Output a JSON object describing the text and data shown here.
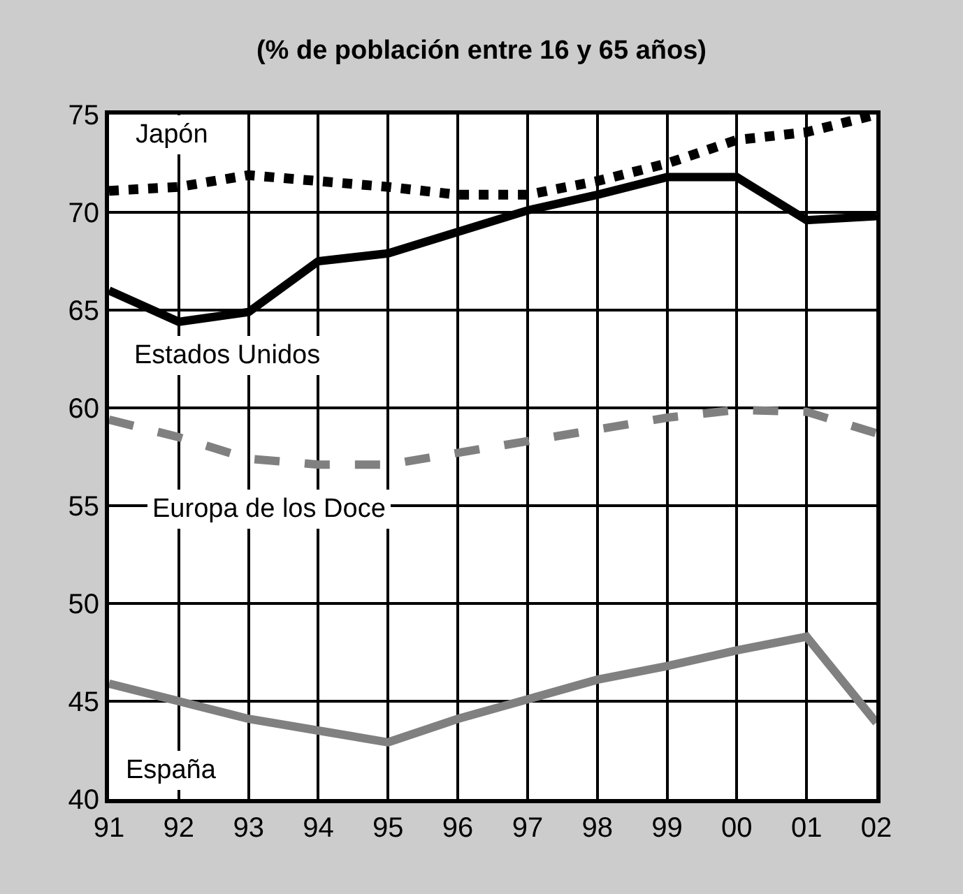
{
  "chart_data": {
    "type": "line",
    "title": "(% de población entre 16 y 65 años)",
    "categories": [
      "91",
      "92",
      "93",
      "94",
      "95",
      "96",
      "97",
      "98",
      "99",
      "00",
      "01",
      "02"
    ],
    "series": [
      {
        "name": "Japón",
        "color": "#000000",
        "line_style": "dotted",
        "values": [
          71.1,
          71.3,
          71.9,
          71.6,
          71.3,
          70.9,
          70.9,
          71.6,
          72.5,
          73.7,
          74.1,
          75.0
        ]
      },
      {
        "name": "Estados Unidos",
        "color": "#000000",
        "line_style": "solid",
        "values": [
          66.0,
          64.4,
          64.9,
          67.5,
          67.9,
          69.0,
          70.1,
          70.9,
          71.8,
          71.8,
          69.6,
          69.8
        ]
      },
      {
        "name": "Europa de los Doce",
        "color": "#808080",
        "line_style": "dashed",
        "values": [
          59.4,
          58.5,
          57.4,
          57.1,
          57.1,
          57.7,
          58.3,
          58.9,
          59.5,
          59.9,
          59.8,
          58.7
        ]
      },
      {
        "name": "España",
        "color": "#808080",
        "line_style": "solid",
        "values": [
          45.9,
          45.0,
          44.1,
          43.5,
          42.9,
          44.1,
          45.1,
          46.1,
          46.8,
          47.6,
          48.3,
          43.9
        ]
      }
    ],
    "ylim": [
      40,
      75
    ],
    "yticks": [
      40,
      45,
      50,
      55,
      60,
      65,
      70,
      75
    ],
    "grid": true,
    "legend": false,
    "marker": "none"
  }
}
